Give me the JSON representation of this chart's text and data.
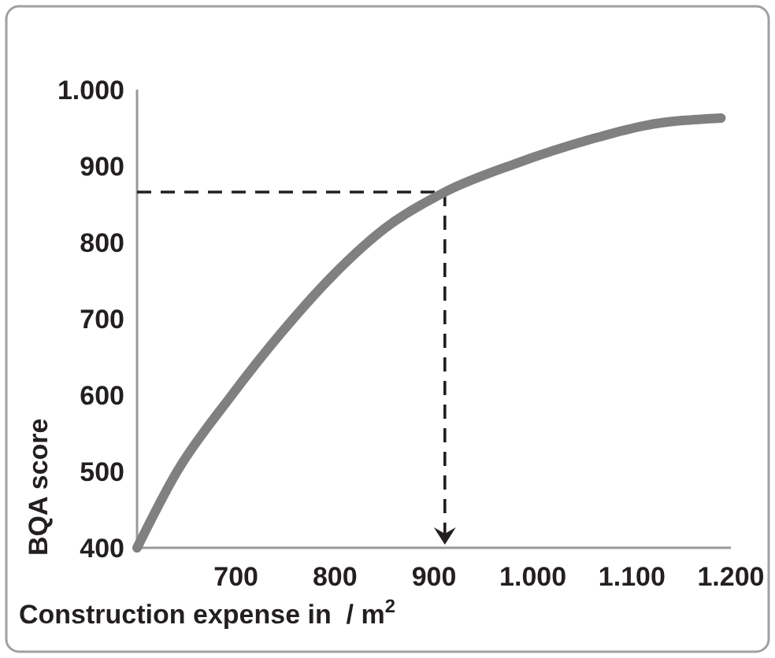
{
  "chart_data": {
    "type": "line",
    "xlabel": "Construction expense in  / m$^{2}$",
    "ylabel": "BQA score",
    "x": [
      600,
      640,
      694,
      746,
      798,
      851,
      911,
      982,
      1061,
      1113,
      1190
    ],
    "series": [
      {
        "color": "#808080",
        "values": [
          400,
          499,
          597,
          682,
          757,
          819,
          866,
          903,
          936,
          953,
          963
        ]
      }
    ],
    "xlim": [
      600,
      1200
    ],
    "ylim": [
      400,
      1000
    ],
    "xticks": [
      700,
      800,
      900,
      {
        "value": 1000,
        "label": "1.000"
      },
      {
        "value": 1100,
        "label": "1.100"
      },
      {
        "value": 1200,
        "label": "1.200"
      }
    ],
    "yticks": [
      400,
      500,
      600,
      700,
      800,
      900,
      {
        "value": 1000,
        "label": "1.000"
      }
    ],
    "ref_lines": [
      {
        "axis": "y",
        "value": 866,
        "color": "#231f20",
        "line_style": "dashed"
      },
      {
        "axis": "x",
        "value": 911,
        "color": "#231f20",
        "line_style": "dashed"
      }
    ],
    "grid": false,
    "marker": "none",
    "line_style": "solid"
  }
}
